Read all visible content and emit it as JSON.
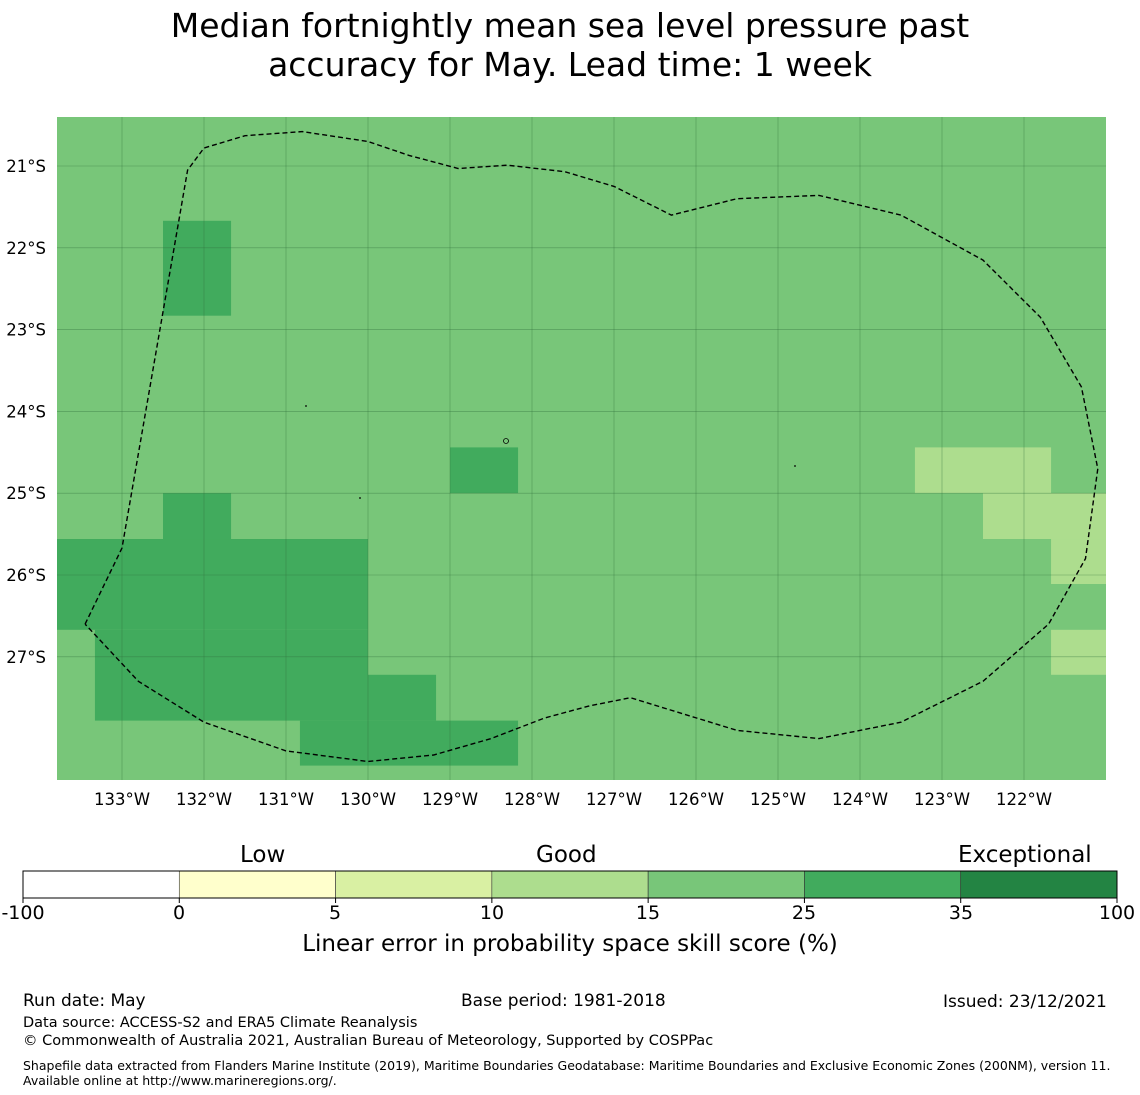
{
  "title": {
    "line1": "Median fortnightly mean sea level pressure past",
    "line2": "accuracy for May. Lead time: 1 week"
  },
  "map": {
    "lon_range": [
      -133.8,
      -121.0
    ],
    "lat_range": [
      -28.5,
      -20.4
    ],
    "background_color": "#78c679",
    "grid": true,
    "x_ticks": [
      "133°W",
      "132°W",
      "131°W",
      "130°W",
      "129°W",
      "128°W",
      "127°W",
      "126°W",
      "125°W",
      "124°W",
      "123°W",
      "122°W"
    ],
    "y_ticks": [
      "21°S",
      "22°S",
      "23°S",
      "24°S",
      "25°S",
      "26°S",
      "27°S"
    ],
    "colors": {
      "cat_10_15": "#addd8e",
      "cat_15_25": "#78c679",
      "cat_25_35": "#41ab5d",
      "cat_35_100": "#238443"
    },
    "cells": [
      {
        "lon": [
          -132.5,
          -131.67
        ],
        "lat": [
          -22.83,
          -21.67
        ],
        "category": "cat_25_35"
      },
      {
        "lon": [
          -129.0,
          -128.17
        ],
        "lat": [
          -25.0,
          -24.44
        ],
        "category": "cat_25_35"
      },
      {
        "lon": [
          -132.5,
          -131.67
        ],
        "lat": [
          -25.56,
          -25.0
        ],
        "category": "cat_25_35"
      },
      {
        "lon": [
          -133.8,
          -130.0
        ],
        "lat": [
          -26.67,
          -25.56
        ],
        "category": "cat_25_35"
      },
      {
        "lon": [
          -133.33,
          -130.0
        ],
        "lat": [
          -27.78,
          -26.67
        ],
        "category": "cat_25_35"
      },
      {
        "lon": [
          -130.0,
          -129.17
        ],
        "lat": [
          -27.78,
          -27.22
        ],
        "category": "cat_25_35"
      },
      {
        "lon": [
          -130.83,
          -128.17
        ],
        "lat": [
          -28.33,
          -27.78
        ],
        "category": "cat_25_35"
      },
      {
        "lon": [
          -123.33,
          -121.67
        ],
        "lat": [
          -25.0,
          -24.44
        ],
        "category": "cat_10_15"
      },
      {
        "lon": [
          -122.5,
          -121.0
        ],
        "lat": [
          -25.56,
          -25.0
        ],
        "category": "cat_10_15"
      },
      {
        "lon": [
          -121.67,
          -121.0
        ],
        "lat": [
          -26.11,
          -25.56
        ],
        "category": "cat_10_15"
      },
      {
        "lon": [
          -121.67,
          -121.0
        ],
        "lat": [
          -27.22,
          -26.67
        ],
        "category": "cat_10_15"
      }
    ],
    "eez_boundary": [
      [
        -133.45,
        -26.6
      ],
      [
        -133.0,
        -25.67
      ],
      [
        -132.2,
        -21.05
      ],
      [
        -132.0,
        -20.78
      ],
      [
        -131.5,
        -20.63
      ],
      [
        -130.8,
        -20.58
      ],
      [
        -130.0,
        -20.7
      ],
      [
        -129.5,
        -20.87
      ],
      [
        -128.9,
        -21.03
      ],
      [
        -128.3,
        -20.99
      ],
      [
        -127.6,
        -21.07
      ],
      [
        -127.0,
        -21.25
      ],
      [
        -126.3,
        -21.6
      ],
      [
        -125.5,
        -21.4
      ],
      [
        -124.5,
        -21.36
      ],
      [
        -123.5,
        -21.6
      ],
      [
        -122.5,
        -22.15
      ],
      [
        -121.8,
        -22.85
      ],
      [
        -121.3,
        -23.7
      ],
      [
        -121.1,
        -24.7
      ],
      [
        -121.25,
        -25.8
      ],
      [
        -121.7,
        -26.6
      ],
      [
        -122.5,
        -27.3
      ],
      [
        -123.5,
        -27.8
      ],
      [
        -124.5,
        -28.0
      ],
      [
        -125.5,
        -27.9
      ],
      [
        -126.8,
        -27.5
      ],
      [
        -127.3,
        -27.6
      ],
      [
        -127.85,
        -27.75
      ],
      [
        -128.5,
        -28.0
      ],
      [
        -129.2,
        -28.2
      ],
      [
        -130.0,
        -28.28
      ],
      [
        -131.0,
        -28.15
      ],
      [
        -132.0,
        -27.8
      ],
      [
        -132.8,
        -27.3
      ],
      [
        -133.45,
        -26.6
      ]
    ]
  },
  "colorbar": {
    "categories": [
      {
        "label": "Low",
        "center_value": 0
      },
      {
        "label": "Good",
        "center_value": 10
      },
      {
        "label": "Exceptional",
        "center_value": 35
      }
    ],
    "ticks": [
      "-100",
      "0",
      "5",
      "10",
      "15",
      "25",
      "35",
      "100"
    ],
    "colors": [
      "#ffffff",
      "#ffffcc",
      "#d9f0a3",
      "#addd8e",
      "#78c679",
      "#41ab5d",
      "#238443"
    ],
    "label": "Linear error in probability space skill score (%)"
  },
  "footer": {
    "run_date": "Run date: May",
    "base_period": "Base period: 1981-2018",
    "issued": "Issued: 23/12/2021",
    "data_source": "Data source: ACCESS-S2 and ERA5 Climate Reanalysis",
    "copyright": "© Commonwealth of Australia 2021, Australian Bureau of Meteorology, Supported by COSPPac",
    "shapefile": "Shapefile data extracted from Flanders Marine Institute (2019), Maritime Boundaries Geodatabase: Maritime Boundaries and Exclusive Economic Zones (200NM), version 11. Available online at http://www.marineregions.org/."
  }
}
